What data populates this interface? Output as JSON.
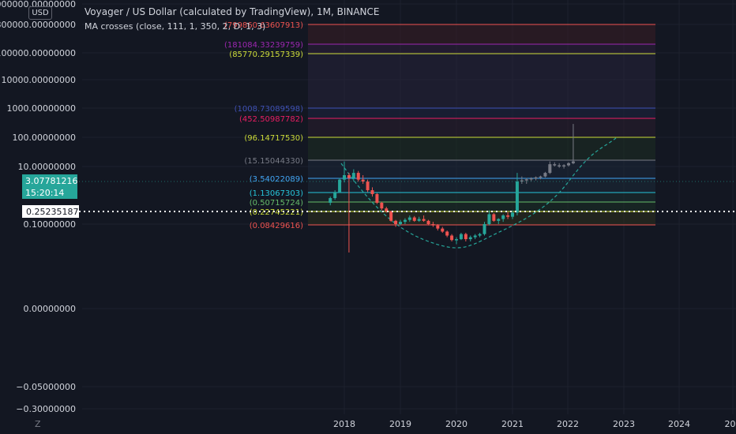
{
  "header": {
    "title": "Voyager / US Dollar (calculated by TradingView), 1M, BINANCE",
    "indicator": "MA crosses (close, 111, 1, 350, 2, D, 1, 3)",
    "currency_button": "USD",
    "logo_letter": "Z"
  },
  "chart_data": {
    "type": "candlestick",
    "scale": "log",
    "price_axis_labels": [
      "6000000.00000000",
      "800000.00000000",
      "100000.00000000",
      "10000.00000000",
      "1000.00000000",
      "100.00000000",
      "10.00000000",
      "0.10000000",
      "0.00000000",
      "−0.05000000",
      "−0.30000000"
    ],
    "time_axis_labels": [
      "2018",
      "2019",
      "2020",
      "2021",
      "2022",
      "2023",
      "2024",
      "202"
    ],
    "badges": {
      "last_price": "3.07781216",
      "countdown": "15:20:14",
      "crosshair_price": "0.25235187"
    },
    "fib_levels": [
      {
        "label": "(799860.63607913)",
        "color": "#ef5350"
      },
      {
        "label": "(181084.33239759)",
        "color": "#9c27b0"
      },
      {
        "label": "(85770.29157339)",
        "color": "#cddc39"
      },
      {
        "label": "(1008.73089598)",
        "color": "#3f51b5"
      },
      {
        "label": "(452.50987782)",
        "color": "#e91e63"
      },
      {
        "label": "(96.14717530)",
        "color": "#cddc39"
      },
      {
        "label": "(15.15044330)",
        "color": "#787b86"
      },
      {
        "label": "(3.54022089)",
        "color": "#42a5f5"
      },
      {
        "label": "(1.13067303)",
        "color": "#26c6da"
      },
      {
        "label": "(0.50715724)",
        "color": "#66bb6a"
      },
      {
        "label": "(0.22745221)",
        "color": "#cddc39"
      },
      {
        "label": "(0.08429616)",
        "color": "#ef5350"
      }
    ],
    "candles": [
      {
        "t": "2017-10",
        "o": 0.55,
        "h": 0.9,
        "l": 0.45,
        "c": 0.8
      },
      {
        "t": "2017-11",
        "o": 0.8,
        "h": 1.5,
        "l": 0.7,
        "c": 1.3
      },
      {
        "t": "2017-12",
        "o": 1.3,
        "h": 4.0,
        "l": 1.2,
        "c": 3.5
      },
      {
        "t": "2018-01",
        "o": 3.5,
        "h": 15.0,
        "l": 2.8,
        "c": 5.0
      },
      {
        "t": "2018-02",
        "o": 5.0,
        "h": 6.0,
        "l": 0.008,
        "c": 4.0
      },
      {
        "t": "2018-03",
        "o": 4.0,
        "h": 8.0,
        "l": 3.0,
        "c": 6.0
      },
      {
        "t": "2018-04",
        "o": 6.0,
        "h": 7.0,
        "l": 3.0,
        "c": 3.5
      },
      {
        "t": "2018-05",
        "o": 3.5,
        "h": 5.0,
        "l": 2.5,
        "c": 3.0
      },
      {
        "t": "2018-06",
        "o": 3.0,
        "h": 3.5,
        "l": 1.3,
        "c": 1.5
      },
      {
        "t": "2018-07",
        "o": 1.5,
        "h": 1.9,
        "l": 0.9,
        "c": 1.1
      },
      {
        "t": "2018-08",
        "o": 1.1,
        "h": 1.2,
        "l": 0.5,
        "c": 0.55
      },
      {
        "t": "2018-09",
        "o": 0.55,
        "h": 0.6,
        "l": 0.3,
        "c": 0.35
      },
      {
        "t": "2018-10",
        "o": 0.35,
        "h": 0.4,
        "l": 0.25,
        "c": 0.28
      },
      {
        "t": "2018-11",
        "o": 0.28,
        "h": 0.29,
        "l": 0.12,
        "c": 0.13
      },
      {
        "t": "2018-12",
        "o": 0.13,
        "h": 0.14,
        "l": 0.08,
        "c": 0.1
      },
      {
        "t": "2019-01",
        "o": 0.1,
        "h": 0.14,
        "l": 0.09,
        "c": 0.12
      },
      {
        "t": "2019-02",
        "o": 0.12,
        "h": 0.16,
        "l": 0.1,
        "c": 0.14
      },
      {
        "t": "2019-03",
        "o": 0.14,
        "h": 0.2,
        "l": 0.12,
        "c": 0.17
      },
      {
        "t": "2019-04",
        "o": 0.17,
        "h": 0.19,
        "l": 0.12,
        "c": 0.13
      },
      {
        "t": "2019-05",
        "o": 0.13,
        "h": 0.18,
        "l": 0.12,
        "c": 0.15
      },
      {
        "t": "2019-06",
        "o": 0.15,
        "h": 0.2,
        "l": 0.12,
        "c": 0.13
      },
      {
        "t": "2019-07",
        "o": 0.13,
        "h": 0.14,
        "l": 0.09,
        "c": 0.1
      },
      {
        "t": "2019-08",
        "o": 0.1,
        "h": 0.12,
        "l": 0.08,
        "c": 0.09
      },
      {
        "t": "2019-09",
        "o": 0.09,
        "h": 0.1,
        "l": 0.06,
        "c": 0.07
      },
      {
        "t": "2019-10",
        "o": 0.07,
        "h": 0.08,
        "l": 0.05,
        "c": 0.055
      },
      {
        "t": "2019-11",
        "o": 0.055,
        "h": 0.06,
        "l": 0.035,
        "c": 0.04
      },
      {
        "t": "2019-12",
        "o": 0.04,
        "h": 0.045,
        "l": 0.025,
        "c": 0.028
      },
      {
        "t": "2020-01",
        "o": 0.028,
        "h": 0.035,
        "l": 0.02,
        "c": 0.03
      },
      {
        "t": "2020-02",
        "o": 0.03,
        "h": 0.05,
        "l": 0.028,
        "c": 0.045
      },
      {
        "t": "2020-03",
        "o": 0.045,
        "h": 0.05,
        "l": 0.025,
        "c": 0.03
      },
      {
        "t": "2020-04",
        "o": 0.03,
        "h": 0.04,
        "l": 0.025,
        "c": 0.035
      },
      {
        "t": "2020-05",
        "o": 0.035,
        "h": 0.045,
        "l": 0.03,
        "c": 0.04
      },
      {
        "t": "2020-06",
        "o": 0.04,
        "h": 0.05,
        "l": 0.035,
        "c": 0.045
      },
      {
        "t": "2020-07",
        "o": 0.045,
        "h": 0.12,
        "l": 0.04,
        "c": 0.1
      },
      {
        "t": "2020-08",
        "o": 0.1,
        "h": 0.3,
        "l": 0.09,
        "c": 0.22
      },
      {
        "t": "2020-09",
        "o": 0.22,
        "h": 0.24,
        "l": 0.12,
        "c": 0.13
      },
      {
        "t": "2020-10",
        "o": 0.13,
        "h": 0.16,
        "l": 0.1,
        "c": 0.15
      },
      {
        "t": "2020-11",
        "o": 0.15,
        "h": 0.22,
        "l": 0.12,
        "c": 0.2
      },
      {
        "t": "2020-12",
        "o": 0.2,
        "h": 0.26,
        "l": 0.15,
        "c": 0.18
      },
      {
        "t": "2021-01",
        "o": 0.18,
        "h": 0.3,
        "l": 0.15,
        "c": 0.25
      },
      {
        "t": "2021-02",
        "o": 0.25,
        "h": 6.0,
        "l": 0.2,
        "c": 3.0
      },
      {
        "t": "2021-03",
        "o": 3.0,
        "h": 4.5,
        "l": 2.5,
        "c": 3.3
      },
      {
        "t": "2021-04",
        "o": 3.3,
        "h": 4.0,
        "l": 2.5,
        "c": 3.6
      },
      {
        "t": "2021-05",
        "o": 3.6,
        "h": 4.2,
        "l": 3.1,
        "c": 3.9
      },
      {
        "t": "2021-06",
        "o": 3.9,
        "h": 4.5,
        "l": 3.3,
        "c": 4.2
      },
      {
        "t": "2021-07",
        "o": 4.2,
        "h": 4.8,
        "l": 3.6,
        "c": 4.5
      },
      {
        "t": "2021-08",
        "o": 4.5,
        "h": 6.5,
        "l": 4.2,
        "c": 6.0
      },
      {
        "t": "2021-09",
        "o": 6.0,
        "h": 15.0,
        "l": 5.5,
        "c": 12.0
      },
      {
        "t": "2021-10",
        "o": 12.0,
        "h": 14.0,
        "l": 10.0,
        "c": 11.0
      },
      {
        "t": "2021-11",
        "o": 11.0,
        "h": 13.0,
        "l": 9.0,
        "c": 10.0
      },
      {
        "t": "2021-12",
        "o": 10.0,
        "h": 12.0,
        "l": 8.5,
        "c": 11.0
      },
      {
        "t": "2022-01",
        "o": 11.0,
        "h": 14.0,
        "l": 10.0,
        "c": 13.0
      },
      {
        "t": "2022-02",
        "o": 13.0,
        "h": 300.0,
        "l": 12.0,
        "c": 15.0
      }
    ]
  },
  "colors": {
    "background": "#131722",
    "up": "#26a69a",
    "down": "#ef5350",
    "projected": "#787b86",
    "grid": "#1e222d",
    "axis_text": "#d1d4dc",
    "ma_curve": "#26a69a",
    "crosshair": "#ffffff"
  }
}
